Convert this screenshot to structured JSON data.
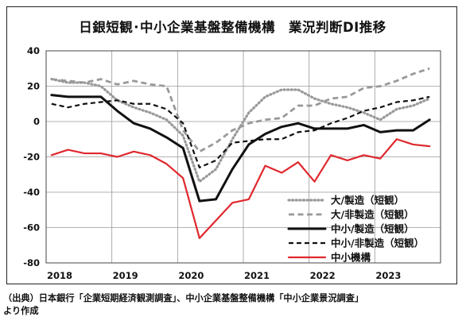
{
  "chart_data": {
    "type": "line",
    "title": "日銀短観･中小企業基盤整備機構　業況判断DI推移",
    "xlabel": "",
    "ylabel": "",
    "ylim": [
      -80,
      40
    ],
    "yticks": [
      40,
      20,
      0,
      -20,
      -40,
      -60,
      -80
    ],
    "xlim": [
      2018,
      2024
    ],
    "xtick_labels": [
      "2018",
      "2019",
      "2020",
      "2021",
      "2022",
      "2023"
    ],
    "grid": true,
    "legend_position": "lower-right",
    "x": [
      2018.0,
      2018.25,
      2018.5,
      2018.75,
      2019.0,
      2019.25,
      2019.5,
      2019.75,
      2020.0,
      2020.25,
      2020.5,
      2020.75,
      2021.0,
      2021.25,
      2021.5,
      2021.75,
      2022.0,
      2022.25,
      2022.5,
      2022.75,
      2023.0,
      2023.25,
      2023.5,
      2023.75
    ],
    "series": [
      {
        "name": "大/製造（短観）",
        "color": "#999999",
        "style": "dotted",
        "values": [
          24,
          22,
          22,
          20,
          12,
          8,
          5,
          1,
          -8,
          -34,
          -27,
          -10,
          5,
          14,
          18,
          18,
          13,
          10,
          8,
          5,
          1,
          7,
          9,
          13
        ]
      },
      {
        "name": "大/非製造（短観）",
        "color": "#999999",
        "style": "dashed",
        "values": [
          24,
          23,
          22,
          24,
          21,
          23,
          21,
          20,
          -5,
          -17,
          -12,
          -5,
          -1,
          1,
          2,
          9,
          9,
          13,
          14,
          19,
          20,
          23,
          27,
          30
        ]
      },
      {
        "name": "中小/製造（短観）",
        "color": "#111111",
        "style": "solid-thick",
        "values": [
          15,
          14,
          14,
          14,
          6,
          -1,
          -4,
          -9,
          -15,
          -45,
          -44,
          -27,
          -13,
          -7,
          -3,
          -1,
          -4,
          -4,
          -4,
          -2,
          -6,
          -5,
          -5,
          1
        ]
      },
      {
        "name": "中小/非製造（短観）",
        "color": "#111111",
        "style": "dashed",
        "values": [
          10,
          8,
          10,
          11,
          12,
          10,
          10,
          7,
          -1,
          -26,
          -22,
          -12,
          -11,
          -10,
          -10,
          -6,
          -5,
          -1,
          2,
          6,
          8,
          11,
          12,
          14
        ]
      },
      {
        "name": "中小機構",
        "color": "#e0282e",
        "style": "solid",
        "values": [
          -19,
          -16,
          -18,
          -18,
          -20,
          -17,
          -19,
          -24,
          -32,
          -66,
          -56,
          -46,
          -44,
          -25,
          -29,
          -23,
          -34,
          -19,
          -22,
          -19,
          -21,
          -10,
          -13,
          -14
        ]
      }
    ]
  },
  "footer": {
    "source_line1": "（出典）日本銀行「企業短期経済観測調査」、中小企業基盤整備機構「中小企業景況調査」",
    "source_line2": "より作成"
  }
}
